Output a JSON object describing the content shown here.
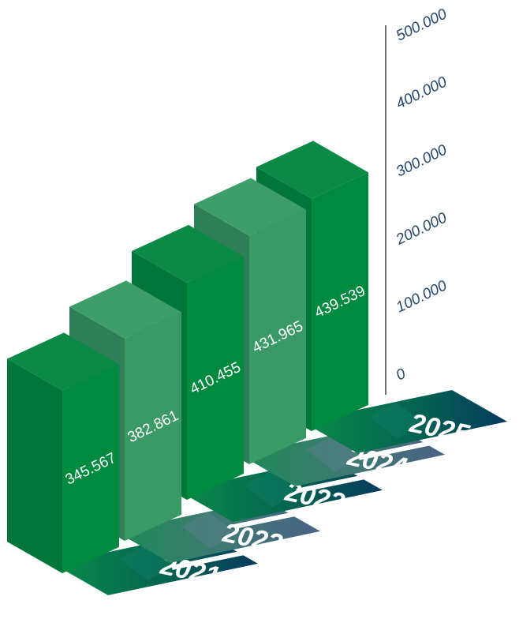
{
  "chart_data": {
    "type": "bar",
    "categories": [
      "2021",
      "2022",
      "2023",
      "2024",
      "2025"
    ],
    "values": [
      345567,
      382861,
      410455,
      431965,
      439539
    ],
    "value_labels": [
      "345.567",
      "382.861",
      "410.455",
      "431.965",
      "439.539"
    ],
    "title": "",
    "xlabel": "",
    "ylabel": "",
    "ylim": [
      0,
      500000
    ],
    "y_ticks": [
      0,
      100000,
      200000,
      300000,
      400000,
      500000
    ],
    "y_tick_labels": [
      "0",
      "100.000",
      "200.000",
      "300.000",
      "400.000",
      "500.000"
    ],
    "grid": false,
    "legend": "none",
    "axis_position": "right",
    "colors": {
      "bar_dark_front": "#008a3f",
      "bar_dark_side": "#00763a",
      "bar_dark_top": "#0a8a45",
      "bar_light_front": "#3a9a66",
      "bar_light_side": "#2e7f58",
      "bar_light_top": "#3e9e6a",
      "label_dark": "#063a5e",
      "label_light": "#4a6286",
      "label_glow": "#0a8a5a",
      "axis_text": "#24456b",
      "axis_line": "#111111"
    }
  }
}
